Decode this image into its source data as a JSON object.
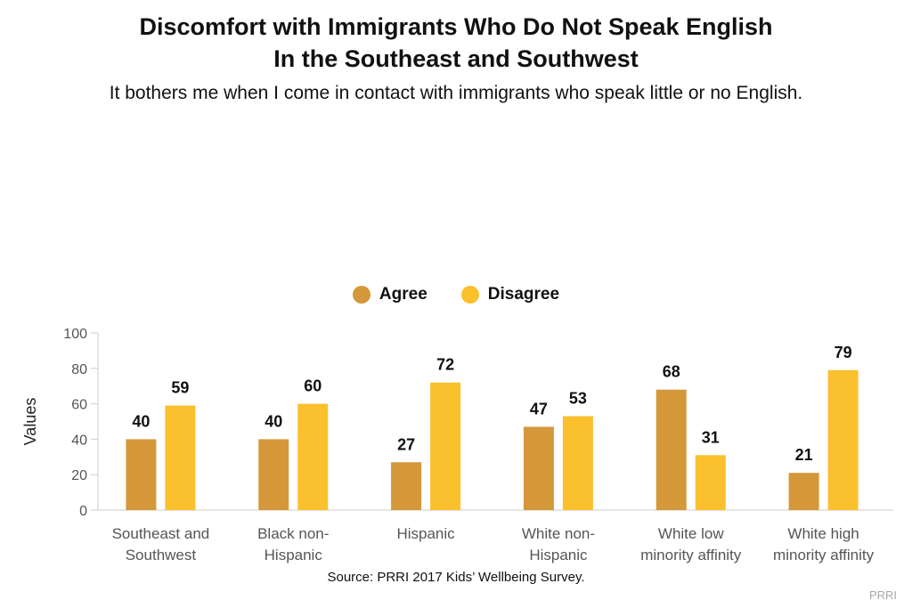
{
  "header": {
    "title_line1": "Discomfort with Immigrants Who Do Not Speak English",
    "title_line2": "In the Southeast and Southwest",
    "subtitle": "It bothers me when I come in contact with immigrants who speak little or no English."
  },
  "footer": {
    "source": "Source: PRRI 2017 Kids’ Wellbeing Survey.",
    "brand": "PRRI"
  },
  "chart_data": {
    "type": "bar",
    "ylabel": "Values",
    "xlabel": "",
    "ylim": [
      0,
      100
    ],
    "yticks": [
      "0",
      "20",
      "40",
      "60",
      "80",
      "100"
    ],
    "categories": [
      [
        "Southeast and",
        "Southwest"
      ],
      [
        "Black non-",
        "Hispanic"
      ],
      [
        "Hispanic"
      ],
      [
        "White non-",
        "Hispanic"
      ],
      [
        "White low",
        "minority affinity"
      ],
      [
        "White high",
        "minority affinity"
      ]
    ],
    "series": [
      {
        "name": "Agree",
        "color": "#D4983A",
        "values": [
          40,
          40,
          27,
          47,
          68,
          21
        ]
      },
      {
        "name": "Disagree",
        "color": "#FBC02D",
        "values": [
          59,
          60,
          72,
          53,
          31,
          79
        ]
      }
    ],
    "legend_position": "top-center",
    "grid": false
  }
}
